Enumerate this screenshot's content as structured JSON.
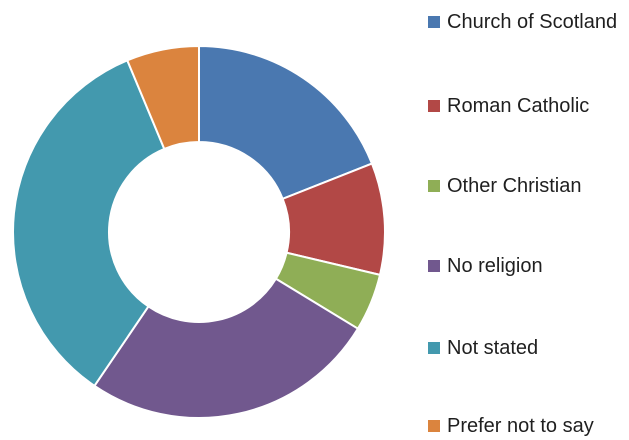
{
  "chart_data": {
    "type": "pie",
    "donut": true,
    "legend_position": "right",
    "categories": [
      "Church of Scotland",
      "Roman Catholic",
      "Other Christian",
      "No religion",
      "Not stated",
      "Prefer not to say"
    ],
    "values": [
      19,
      9.7,
      5,
      25.8,
      34.2,
      6.3
    ],
    "colors": [
      "#4A78B0",
      "#B24846",
      "#8FAE56",
      "#71588E",
      "#4399AE",
      "#DB843E"
    ]
  }
}
